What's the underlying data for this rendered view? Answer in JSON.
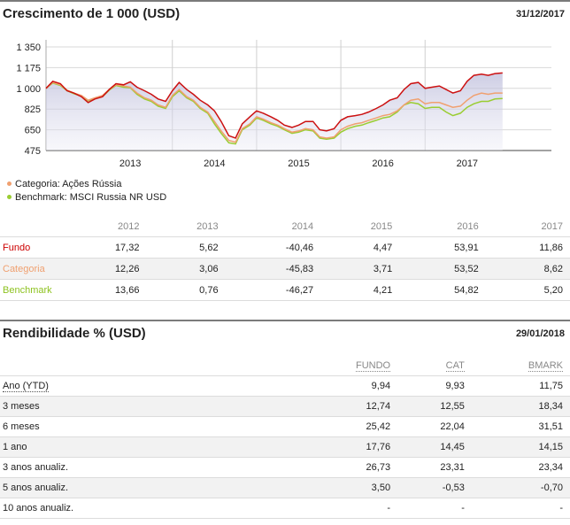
{
  "growth": {
    "title": "Crescimento de 1 000 (USD)",
    "date": "31/12/2017"
  },
  "legend": [
    {
      "label": "Categoria: Ações Rússia",
      "color": "#f0a070"
    },
    {
      "label": "Benchmark: MSCI Russia NR USD",
      "color": "#9acd32"
    }
  ],
  "chart_data": {
    "type": "line",
    "title": "Crescimento de 1 000 (USD)",
    "y_ticks": [
      "1 350",
      "1 175",
      "1 000",
      "825",
      "650",
      "475"
    ],
    "y_tick_values": [
      1350,
      1175,
      1000,
      825,
      650,
      475
    ],
    "ylim": [
      475,
      1350
    ],
    "x_labels": [
      "2013",
      "2014",
      "2015",
      "2016",
      "2017"
    ],
    "xlim": [
      2012.0,
      2018.0
    ],
    "grid": true,
    "series": [
      {
        "name": "Fundo",
        "color": "#cc1111",
        "points": [
          [
            2012.0,
            1000
          ],
          [
            2012.08,
            1060
          ],
          [
            2012.17,
            1040
          ],
          [
            2012.25,
            980
          ],
          [
            2012.33,
            960
          ],
          [
            2012.42,
            930
          ],
          [
            2012.5,
            880
          ],
          [
            2012.58,
            910
          ],
          [
            2012.67,
            930
          ],
          [
            2012.75,
            990
          ],
          [
            2012.83,
            1040
          ],
          [
            2012.92,
            1030
          ],
          [
            2013.0,
            1055
          ],
          [
            2013.08,
            1010
          ],
          [
            2013.17,
            980
          ],
          [
            2013.25,
            950
          ],
          [
            2013.33,
            910
          ],
          [
            2013.42,
            890
          ],
          [
            2013.5,
            980
          ],
          [
            2013.58,
            1050
          ],
          [
            2013.67,
            990
          ],
          [
            2013.75,
            950
          ],
          [
            2013.83,
            900
          ],
          [
            2013.92,
            860
          ],
          [
            2014.0,
            810
          ],
          [
            2014.08,
            720
          ],
          [
            2014.17,
            600
          ],
          [
            2014.25,
            580
          ],
          [
            2014.33,
            700
          ],
          [
            2014.42,
            760
          ],
          [
            2014.5,
            810
          ],
          [
            2014.58,
            790
          ],
          [
            2014.67,
            760
          ],
          [
            2014.75,
            730
          ],
          [
            2014.83,
            690
          ],
          [
            2014.92,
            670
          ],
          [
            2015.0,
            690
          ],
          [
            2015.08,
            720
          ],
          [
            2015.17,
            720
          ],
          [
            2015.25,
            650
          ],
          [
            2015.33,
            640
          ],
          [
            2015.42,
            660
          ],
          [
            2015.5,
            730
          ],
          [
            2015.58,
            760
          ],
          [
            2015.67,
            770
          ],
          [
            2015.75,
            780
          ],
          [
            2015.83,
            800
          ],
          [
            2015.92,
            830
          ],
          [
            2016.0,
            860
          ],
          [
            2016.08,
            900
          ],
          [
            2016.17,
            920
          ],
          [
            2016.25,
            990
          ],
          [
            2016.33,
            1040
          ],
          [
            2016.42,
            1050
          ],
          [
            2016.5,
            1000
          ],
          [
            2016.58,
            1010
          ],
          [
            2016.67,
            1020
          ],
          [
            2016.75,
            990
          ],
          [
            2016.83,
            960
          ],
          [
            2016.92,
            980
          ],
          [
            2017.0,
            1060
          ],
          [
            2017.08,
            1110
          ],
          [
            2017.17,
            1120
          ],
          [
            2017.25,
            1110
          ],
          [
            2017.33,
            1125
          ],
          [
            2017.42,
            1130
          ]
        ]
      },
      {
        "name": "Categoria",
        "color": "#f0a070",
        "points": [
          [
            2012.0,
            1000
          ],
          [
            2012.08,
            1050
          ],
          [
            2012.17,
            1030
          ],
          [
            2012.25,
            985
          ],
          [
            2012.33,
            960
          ],
          [
            2012.42,
            940
          ],
          [
            2012.5,
            900
          ],
          [
            2012.58,
            920
          ],
          [
            2012.67,
            940
          ],
          [
            2012.75,
            990
          ],
          [
            2012.83,
            1030
          ],
          [
            2012.92,
            1020
          ],
          [
            2013.0,
            1010
          ],
          [
            2013.08,
            960
          ],
          [
            2013.17,
            920
          ],
          [
            2013.25,
            900
          ],
          [
            2013.33,
            860
          ],
          [
            2013.42,
            840
          ],
          [
            2013.5,
            940
          ],
          [
            2013.58,
            990
          ],
          [
            2013.67,
            930
          ],
          [
            2013.75,
            900
          ],
          [
            2013.83,
            840
          ],
          [
            2013.92,
            800
          ],
          [
            2014.0,
            720
          ],
          [
            2014.08,
            640
          ],
          [
            2014.17,
            560
          ],
          [
            2014.25,
            545
          ],
          [
            2014.33,
            660
          ],
          [
            2014.42,
            700
          ],
          [
            2014.5,
            760
          ],
          [
            2014.58,
            740
          ],
          [
            2014.67,
            710
          ],
          [
            2014.75,
            690
          ],
          [
            2014.83,
            660
          ],
          [
            2014.92,
            630
          ],
          [
            2015.0,
            640
          ],
          [
            2015.08,
            660
          ],
          [
            2015.17,
            650
          ],
          [
            2015.25,
            590
          ],
          [
            2015.33,
            580
          ],
          [
            2015.42,
            590
          ],
          [
            2015.5,
            650
          ],
          [
            2015.58,
            680
          ],
          [
            2015.67,
            700
          ],
          [
            2015.75,
            710
          ],
          [
            2015.83,
            730
          ],
          [
            2015.92,
            750
          ],
          [
            2016.0,
            770
          ],
          [
            2016.08,
            780
          ],
          [
            2016.17,
            810
          ],
          [
            2016.25,
            860
          ],
          [
            2016.33,
            900
          ],
          [
            2016.42,
            910
          ],
          [
            2016.5,
            870
          ],
          [
            2016.58,
            880
          ],
          [
            2016.67,
            880
          ],
          [
            2016.75,
            860
          ],
          [
            2016.83,
            840
          ],
          [
            2016.92,
            850
          ],
          [
            2017.0,
            900
          ],
          [
            2017.08,
            940
          ],
          [
            2017.17,
            960
          ],
          [
            2017.25,
            950
          ],
          [
            2017.33,
            960
          ],
          [
            2017.42,
            960
          ]
        ]
      },
      {
        "name": "Benchmark",
        "color": "#9acd32",
        "points": [
          [
            2012.0,
            1000
          ],
          [
            2012.08,
            1045
          ],
          [
            2012.17,
            1025
          ],
          [
            2012.25,
            980
          ],
          [
            2012.33,
            955
          ],
          [
            2012.42,
            935
          ],
          [
            2012.5,
            895
          ],
          [
            2012.58,
            915
          ],
          [
            2012.67,
            930
          ],
          [
            2012.75,
            985
          ],
          [
            2012.83,
            1025
          ],
          [
            2012.92,
            1010
          ],
          [
            2013.0,
            1005
          ],
          [
            2013.08,
            950
          ],
          [
            2013.17,
            910
          ],
          [
            2013.25,
            890
          ],
          [
            2013.33,
            850
          ],
          [
            2013.42,
            830
          ],
          [
            2013.5,
            930
          ],
          [
            2013.58,
            980
          ],
          [
            2013.67,
            920
          ],
          [
            2013.75,
            890
          ],
          [
            2013.83,
            830
          ],
          [
            2013.92,
            790
          ],
          [
            2014.0,
            700
          ],
          [
            2014.08,
            620
          ],
          [
            2014.17,
            540
          ],
          [
            2014.25,
            530
          ],
          [
            2014.33,
            650
          ],
          [
            2014.42,
            690
          ],
          [
            2014.5,
            750
          ],
          [
            2014.58,
            730
          ],
          [
            2014.67,
            700
          ],
          [
            2014.75,
            680
          ],
          [
            2014.83,
            650
          ],
          [
            2014.92,
            620
          ],
          [
            2015.0,
            630
          ],
          [
            2015.08,
            650
          ],
          [
            2015.17,
            640
          ],
          [
            2015.25,
            580
          ],
          [
            2015.33,
            570
          ],
          [
            2015.42,
            580
          ],
          [
            2015.5,
            630
          ],
          [
            2015.58,
            660
          ],
          [
            2015.67,
            680
          ],
          [
            2015.75,
            690
          ],
          [
            2015.83,
            710
          ],
          [
            2015.92,
            730
          ],
          [
            2016.0,
            750
          ],
          [
            2016.08,
            760
          ],
          [
            2016.17,
            800
          ],
          [
            2016.25,
            860
          ],
          [
            2016.33,
            880
          ],
          [
            2016.42,
            870
          ],
          [
            2016.5,
            830
          ],
          [
            2016.58,
            840
          ],
          [
            2016.67,
            840
          ],
          [
            2016.75,
            800
          ],
          [
            2016.83,
            770
          ],
          [
            2016.92,
            790
          ],
          [
            2017.0,
            840
          ],
          [
            2017.08,
            870
          ],
          [
            2017.17,
            890
          ],
          [
            2017.25,
            890
          ],
          [
            2017.33,
            910
          ],
          [
            2017.42,
            915
          ]
        ]
      }
    ]
  },
  "annual": {
    "years": [
      "2012",
      "2013",
      "2014",
      "2015",
      "2016",
      "2017"
    ],
    "rows": [
      {
        "label": "Fundo",
        "color": "#cc0000",
        "values": [
          "17,32",
          "5,62",
          "-40,46",
          "4,47",
          "53,91",
          "11,86"
        ]
      },
      {
        "label": "Categoria",
        "color": "#f0a070",
        "values": [
          "12,26",
          "3,06",
          "-45,83",
          "3,71",
          "53,52",
          "8,62"
        ]
      },
      {
        "label": "Benchmark",
        "color": "#8dc21f",
        "values": [
          "13,66",
          "0,76",
          "-46,27",
          "4,21",
          "54,82",
          "5,20"
        ]
      }
    ]
  },
  "returns": {
    "title": "Rendibilidade % (USD)",
    "date": "29/01/2018",
    "headers": [
      "FUNDO",
      "CAT",
      "BMARK"
    ],
    "rows": [
      {
        "label": "Ano (YTD)",
        "values": [
          "9,94",
          "9,93",
          "11,75"
        ]
      },
      {
        "label": "3 meses",
        "values": [
          "12,74",
          "12,55",
          "18,34"
        ]
      },
      {
        "label": "6 meses",
        "values": [
          "25,42",
          "22,04",
          "31,51"
        ]
      },
      {
        "label": "1 ano",
        "values": [
          "17,76",
          "14,45",
          "14,15"
        ]
      },
      {
        "label": "3 anos anualiz.",
        "values": [
          "26,73",
          "23,31",
          "23,34"
        ]
      },
      {
        "label": "5 anos anualiz.",
        "values": [
          "3,50",
          "-0,53",
          "-0,70"
        ]
      },
      {
        "label": "10 anos anualiz.",
        "values": [
          "-",
          "-",
          "-"
        ]
      }
    ]
  }
}
